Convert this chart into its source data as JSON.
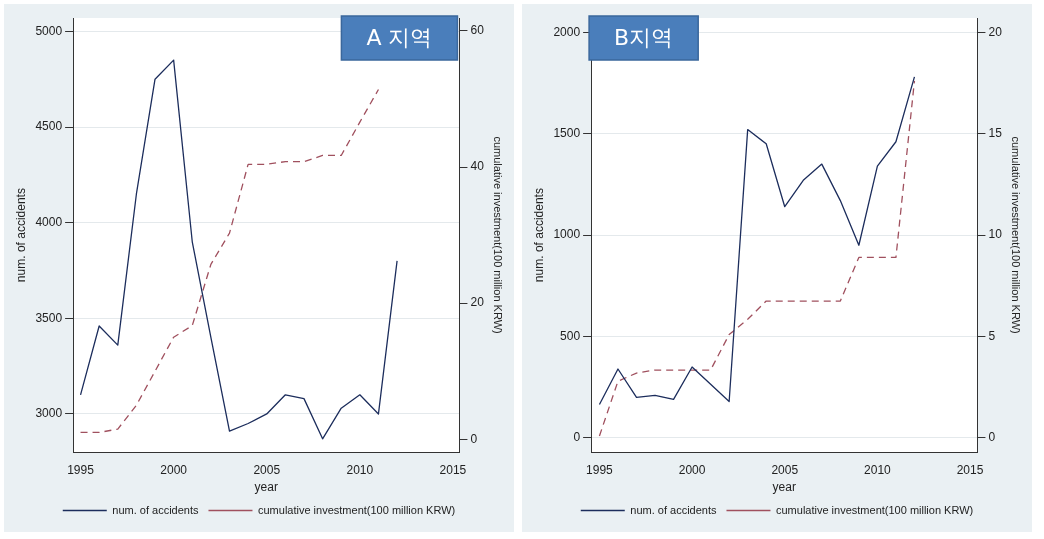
{
  "chart_data": [
    {
      "type": "line",
      "annotations": [
        "A 지역"
      ],
      "xlabel": "year",
      "ylabel": "num. of accidents",
      "y2label": "cumulative investment(100 million KRW)",
      "xlim": [
        1994.6,
        2015.35
      ],
      "xticks": [
        1995,
        2000,
        2005,
        2010,
        2015
      ],
      "ylim": [
        2800,
        5070
      ],
      "yticks": [
        3000,
        3500,
        4000,
        4500,
        5000
      ],
      "y2lim": [
        -1.9,
        61.9
      ],
      "y2ticks": [
        0,
        20,
        40,
        60
      ],
      "grid": "y",
      "legend": "bottom",
      "marker": "none",
      "series": [
        {
          "name": "num. of accidents",
          "color": "#1c2d5c",
          "line_style": "solid",
          "x": [
            1995,
            1996,
            1997,
            1998,
            1999,
            2000,
            2001,
            2002,
            2003,
            2004,
            2005,
            2006,
            2007,
            2008,
            2009,
            2010,
            2011,
            2012
          ],
          "values": [
            3100,
            3460,
            3360,
            4150,
            4750,
            4850,
            3900,
            3400,
            2910,
            2950,
            3000,
            3100,
            3080,
            2870,
            3030,
            3100,
            3000,
            3800
          ]
        },
        {
          "name": "cumulative investment(100 million KRW)",
          "color": "#a0505e",
          "line_style": "dashed",
          "axis": "y2",
          "x": [
            1995,
            1996,
            1997,
            1998,
            1999,
            2000,
            2001,
            2002,
            2003,
            2004,
            2005,
            2006,
            2007,
            2008,
            2009,
            2010,
            2011
          ],
          "values": [
            1.0,
            1.0,
            1.5,
            5,
            10,
            15,
            16.7,
            25.7,
            30.3,
            40.4,
            40.4,
            40.8,
            40.8,
            41.7,
            41.7,
            46.6,
            51.4
          ]
        }
      ]
    },
    {
      "type": "line",
      "annotations": [
        "B지역"
      ],
      "xlabel": "year",
      "ylabel": "num. of accidents",
      "y2label": "cumulative investment(100 million KRW)",
      "xlim": [
        1994.55,
        2015.4
      ],
      "xticks": [
        1995,
        2000,
        2005,
        2010,
        2015
      ],
      "ylim": [
        -70,
        2070
      ],
      "yticks": [
        0,
        500,
        1000,
        1500,
        2000
      ],
      "y2lim": [
        -0.7,
        20.7
      ],
      "y2ticks": [
        0,
        5,
        10,
        15,
        20
      ],
      "grid": "y",
      "legend": "bottom",
      "marker": "none",
      "series": [
        {
          "name": "num. of accidents",
          "color": "#1c2d5c",
          "line_style": "solid",
          "x": [
            1995,
            1996,
            1997,
            1998,
            1999,
            2000,
            2001,
            2002,
            2003,
            2004,
            2005,
            2006,
            2007,
            2008,
            2009,
            2010,
            2011,
            2012
          ],
          "values": [
            165,
            340,
            200,
            210,
            190,
            350,
            265,
            180,
            1520,
            1450,
            1140,
            1270,
            1350,
            1170,
            950,
            1340,
            1460,
            1780
          ]
        },
        {
          "name": "cumulative investment(100 million KRW)",
          "color": "#a0505e",
          "line_style": "dashed",
          "axis": "y2",
          "x": [
            1995,
            1996,
            1997,
            1998,
            1999,
            2000,
            2001,
            2002,
            2003,
            2004,
            2005,
            2006,
            2007,
            2008,
            2009,
            2010,
            2011,
            2012
          ],
          "values": [
            0.1,
            2.8,
            3.2,
            3.35,
            3.35,
            3.35,
            3.35,
            5.1,
            5.85,
            6.75,
            6.75,
            6.75,
            6.75,
            6.75,
            8.9,
            8.9,
            8.9,
            17.6
          ]
        }
      ]
    }
  ]
}
